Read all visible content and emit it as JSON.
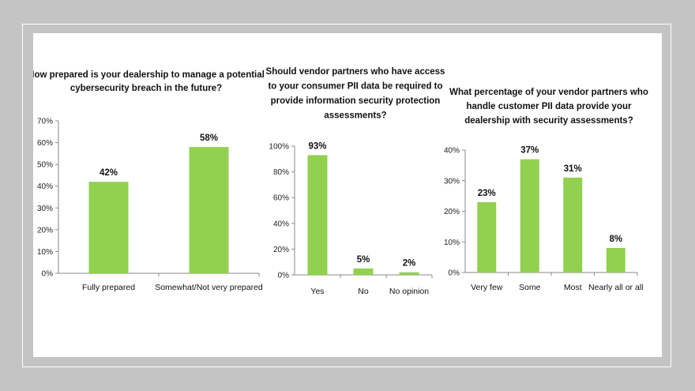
{
  "colors": {
    "bar": "#92d050",
    "background": "#c4c4c4",
    "panel": "#ffffff"
  },
  "chart_data": [
    {
      "type": "bar",
      "title_lines": [
        "How prepared is your dealership to manage a potential",
        "cybersecurity breach in the future?"
      ],
      "categories": [
        "Fully prepared",
        "Somewhat/Not very prepared"
      ],
      "values": [
        42,
        58
      ],
      "value_labels": [
        "42%",
        "58%"
      ],
      "ylim": [
        0,
        70
      ],
      "yticks": [
        0,
        10,
        20,
        30,
        40,
        50,
        60,
        70
      ],
      "ytick_labels": [
        "0%",
        "10%",
        "20%",
        "30%",
        "40%",
        "50%",
        "60%",
        "70%"
      ],
      "grid": false
    },
    {
      "type": "bar",
      "title_lines": [
        "Should vendor partners who have access",
        "to your consumer PII data be required to",
        "provide information security protection",
        "assessments?"
      ],
      "categories": [
        "Yes",
        "No",
        "No opinion"
      ],
      "values": [
        93,
        5,
        2
      ],
      "value_labels": [
        "93%",
        "5%",
        "2%"
      ],
      "ylim": [
        0,
        100
      ],
      "yticks": [
        0,
        20,
        40,
        60,
        80,
        100
      ],
      "ytick_labels": [
        "0%",
        "20%",
        "40%",
        "60%",
        "80%",
        "100%"
      ],
      "grid": false
    },
    {
      "type": "bar",
      "title_lines": [
        "What percentage of your vendor partners who",
        "handle customer PII data provide your",
        "dealership with security assessments?"
      ],
      "categories": [
        "Very few",
        "Some",
        "Most",
        "Nearly all or all"
      ],
      "values": [
        23,
        37,
        31,
        8
      ],
      "value_labels": [
        "23%",
        "37%",
        "31%",
        "8%"
      ],
      "ylim": [
        0,
        40
      ],
      "yticks": [
        0,
        10,
        20,
        30,
        40
      ],
      "ytick_labels": [
        "0%",
        "10%",
        "20%",
        "30%",
        "40%"
      ],
      "grid": false
    }
  ]
}
